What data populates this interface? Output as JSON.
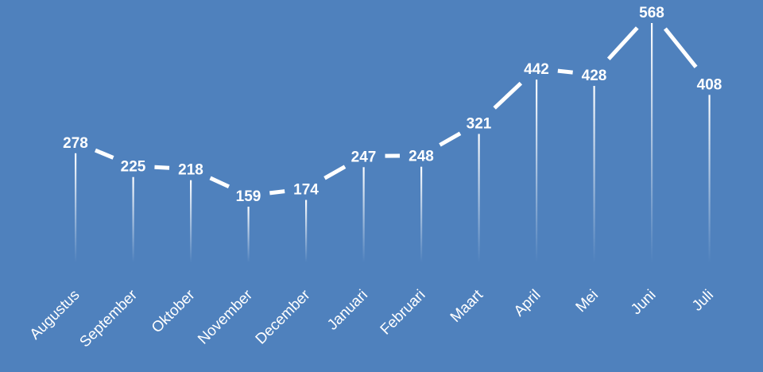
{
  "chart_data": {
    "type": "line",
    "categories": [
      "Augustus",
      "September",
      "Oktober",
      "November",
      "December",
      "Januari",
      "Februari",
      "Maart",
      "April",
      "Mei",
      "Juni",
      "Juli"
    ],
    "series": [
      {
        "values": [
          278,
          225,
          218,
          159,
          174,
          247,
          248,
          321,
          442,
          428,
          568,
          408
        ]
      }
    ],
    "data_labels": true,
    "drop_lines": true,
    "grid": false,
    "legend": "none",
    "colors": {
      "background": "#4f81bd",
      "line": "#ffffff",
      "text": "#ffffff"
    }
  }
}
